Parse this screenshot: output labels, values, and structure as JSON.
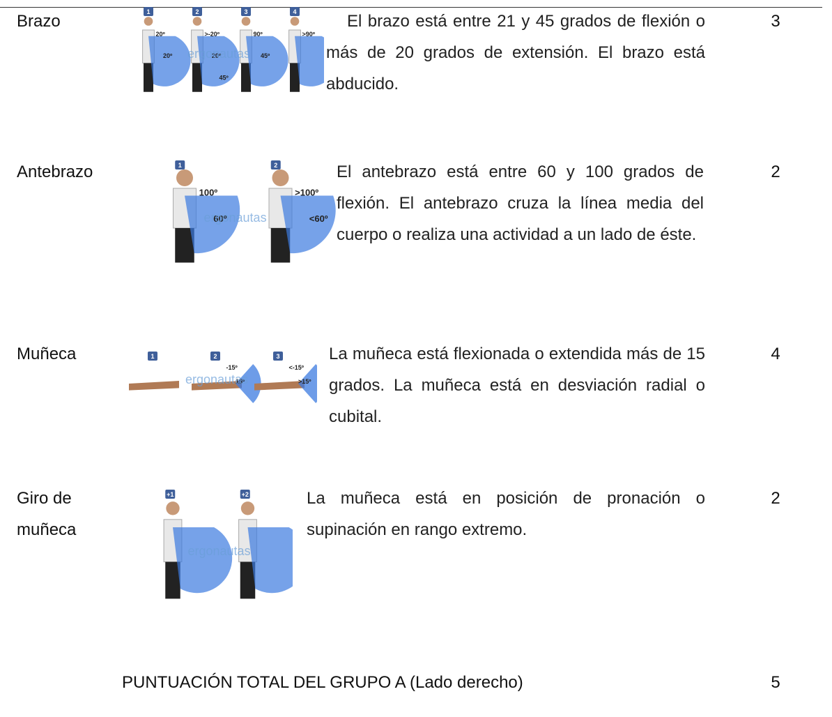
{
  "watermark": "ergonautas",
  "rows": [
    {
      "label": "Brazo",
      "description": "El brazo está entre 21 y 45 grados de flexión o más de 20 grados de extensión.  El brazo está abducido.",
      "score": "3",
      "figures": [
        {
          "badge": "1",
          "angles": [
            "20º",
            "20º"
          ]
        },
        {
          "badge": "2",
          "angles": [
            ">-20º",
            "20º",
            "45º"
          ]
        },
        {
          "badge": "3",
          "angles": [
            "90º",
            "45º"
          ]
        },
        {
          "badge": "4",
          "angles": [
            ">90º"
          ]
        }
      ]
    },
    {
      "label": "Antebrazo",
      "description": "El antebrazo está entre 60 y 100 grados de flexión. El antebrazo cruza la línea media del cuerpo o realiza una actividad a un lado de éste.",
      "score": "2",
      "figures": [
        {
          "badge": "1",
          "angles": [
            "100º",
            "60º"
          ]
        },
        {
          "badge": "2",
          "angles": [
            ">100º",
            "<60º"
          ]
        }
      ]
    },
    {
      "label": "Muñeca",
      "description": "La muñeca está flexionada o extendida más de 15 grados.  La muñeca está en desviación radial o cubital.",
      "score": "4",
      "figures": [
        {
          "badge": "1",
          "angles": []
        },
        {
          "badge": "2",
          "angles": [
            "-15º",
            "15º"
          ]
        },
        {
          "badge": "3",
          "angles": [
            "<-15º",
            ">15º"
          ]
        }
      ]
    },
    {
      "label": "Giro de muñeca",
      "description": "La muñeca está en posición de pronación o supinación en rango extremo.",
      "score": "2",
      "figures": [
        {
          "badge": "+1",
          "angles": []
        },
        {
          "badge": "+2",
          "angles": []
        }
      ]
    }
  ],
  "total": {
    "label": "PUNTUACIÓN TOTAL DEL GRUPO A (Lado derecho)",
    "score": "5"
  }
}
